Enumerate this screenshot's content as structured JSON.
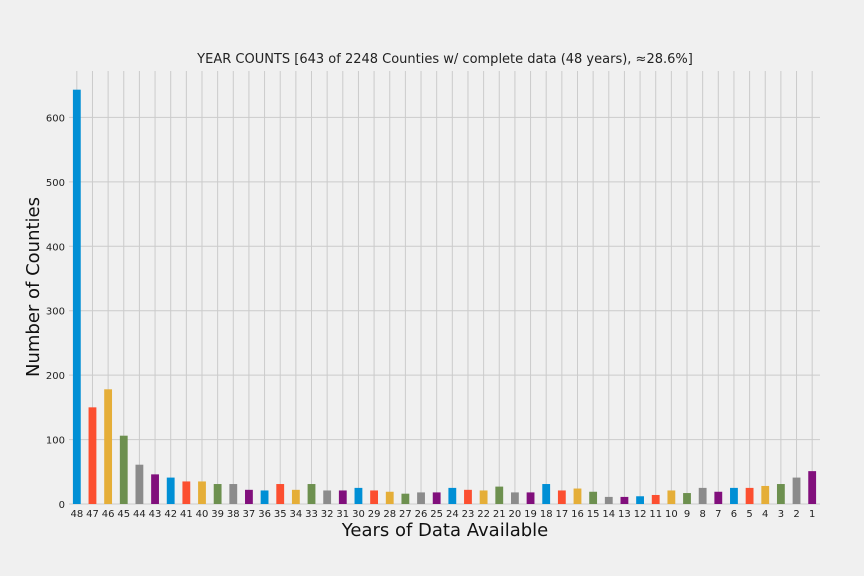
{
  "chart_data": {
    "type": "bar",
    "title": "YEAR COUNTS [643 of 2248 Counties w/ complete data (48 years), ≈28.6%]",
    "xlabel": "Years of Data Available",
    "ylabel": "Number of Counties",
    "ylim": [
      0,
      672
    ],
    "yticks": [
      0,
      100,
      200,
      300,
      400,
      500,
      600
    ],
    "grid": true,
    "legend": "none",
    "categories": [
      "48",
      "47",
      "46",
      "45",
      "44",
      "43",
      "42",
      "41",
      "40",
      "39",
      "38",
      "37",
      "36",
      "35",
      "34",
      "33",
      "32",
      "31",
      "30",
      "29",
      "28",
      "27",
      "26",
      "25",
      "24",
      "23",
      "22",
      "21",
      "20",
      "19",
      "18",
      "17",
      "16",
      "15",
      "14",
      "13",
      "12",
      "11",
      "10",
      "9",
      "8",
      "7",
      "6",
      "5",
      "4",
      "3",
      "2",
      "1"
    ],
    "values": [
      643,
      150,
      178,
      106,
      61,
      46,
      41,
      35,
      35,
      31,
      31,
      22,
      21,
      31,
      22,
      31,
      21,
      21,
      25,
      21,
      19,
      16,
      18,
      18,
      25,
      22,
      21,
      27,
      18,
      18,
      31,
      21,
      24,
      19,
      11,
      11,
      12,
      14,
      21,
      17,
      25,
      19,
      25,
      25,
      28,
      31,
      41,
      51
    ],
    "colors": [
      "#008fd5",
      "#fc4f30",
      "#e5ae38",
      "#6d904f",
      "#8b8b8b",
      "#810f7c"
    ]
  }
}
